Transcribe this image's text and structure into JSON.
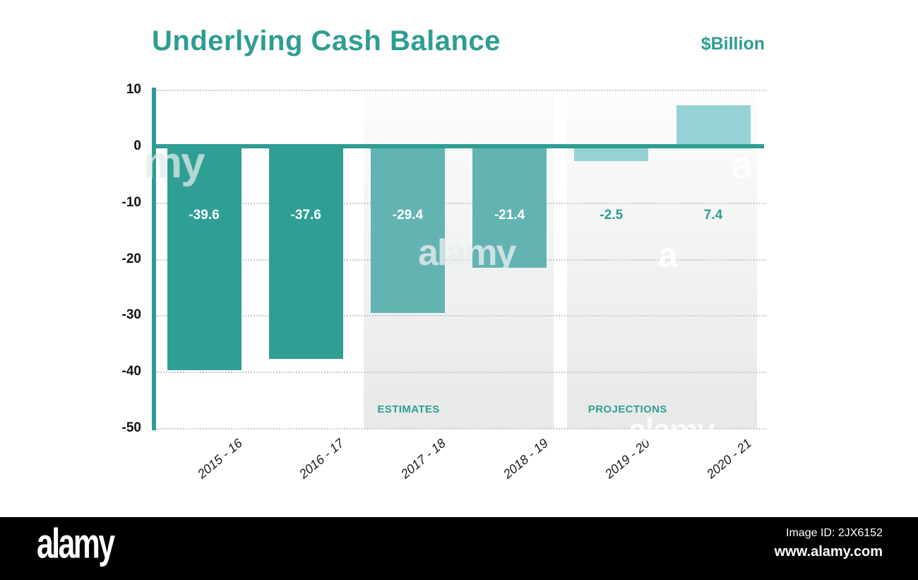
{
  "title": "Underlying Cash Balance",
  "unit_label": "$Billion",
  "chart_data": {
    "type": "bar",
    "title": "Underlying Cash Balance",
    "unit": "$Billion",
    "categories": [
      "2015 - 16",
      "2016 - 17",
      "2017 - 18",
      "2018 - 19",
      "2019 - 20",
      "2020 - 21"
    ],
    "values": [
      -39.6,
      -37.6,
      -29.4,
      -21.4,
      -2.5,
      7.4
    ],
    "value_labels": [
      "-39.6",
      "-37.6",
      "-29.4",
      "-21.4",
      "-2.5",
      "7.4"
    ],
    "groups": [
      "actual",
      "actual",
      "estimate",
      "estimate",
      "projection",
      "projection"
    ],
    "yticks": [
      10,
      0,
      -10,
      -20,
      -30,
      -40,
      -50
    ],
    "ylim": [
      -50,
      10
    ],
    "xlabel": "",
    "ylabel": "$Billion",
    "grid": "dotted-horizontal",
    "legend": "none",
    "sections": [
      {
        "label": "ESTIMATES",
        "categories": [
          "2017 - 18",
          "2018 - 19"
        ]
      },
      {
        "label": "PROJECTIONS",
        "categories": [
          "2019 - 20",
          "2020 - 21"
        ]
      }
    ],
    "colors": {
      "actual": "#2F9F95",
      "estimate": "#63B3B2",
      "projection": "#96D2D5",
      "accent": "#2E9D93",
      "grid": "#C9C9C9",
      "value_label_inside": "#FFFFFF",
      "value_label_outside": "#2E9D93"
    }
  },
  "watermark": {
    "brand": "alamy",
    "image_id": "Image ID: 2JX6152",
    "site": "www.alamy.com",
    "fragments": [
      {
        "text": "my"
      },
      {
        "text": "alamy"
      },
      {
        "text": "a"
      },
      {
        "text": "a"
      },
      {
        "text": "alamy"
      }
    ]
  }
}
